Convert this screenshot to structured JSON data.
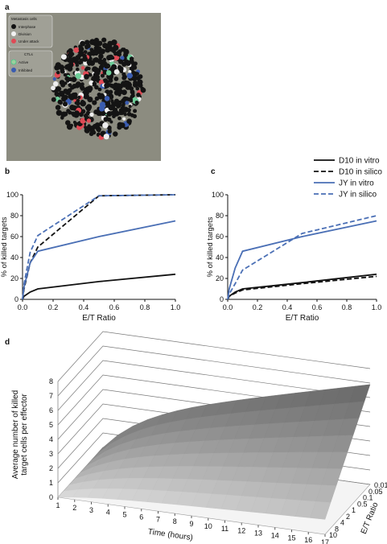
{
  "panel_labels": [
    "a",
    "b",
    "c",
    "d"
  ],
  "simulation_legend": {
    "cells_title": "Metastasis cells",
    "cells": [
      "Interphase",
      "Division",
      "Under attack"
    ],
    "ctl_title": "CTLs",
    "ctls": [
      "Active",
      "Inhibited"
    ]
  },
  "chart_data": [
    {
      "type": "line",
      "x": [
        0,
        0.01,
        0.05,
        0.1,
        0.5,
        1
      ],
      "xlim": [
        0,
        1
      ],
      "ylim": [
        0,
        100
      ],
      "xticks": [
        {
          "value": 0,
          "label": "0.0"
        },
        0.2,
        0.4,
        0.6,
        0.8,
        {
          "value": 1,
          "label": "1.0"
        }
      ],
      "yticks": [
        0,
        20,
        40,
        60,
        80,
        100
      ],
      "xlabel": "E/T Ratio",
      "ylabel": "% of killed targets",
      "series": [
        {
          "name": "D10 in vitro",
          "color": "#111111",
          "dash": false,
          "values": [
            0,
            3,
            7,
            10,
            17,
            24
          ]
        },
        {
          "name": "D10 in silico",
          "color": "#111111",
          "dash": true,
          "values": [
            0,
            10,
            35,
            50,
            99,
            100
          ]
        },
        {
          "name": "JY in vitro",
          "color": "#4a6fb5",
          "dash": false,
          "values": [
            0,
            12,
            35,
            46,
            60,
            75
          ]
        },
        {
          "name": "JY in silico",
          "color": "#4a6fb5",
          "dash": true,
          "values": [
            0,
            15,
            45,
            61,
            99,
            100
          ]
        }
      ]
    },
    {
      "type": "line",
      "x": [
        0,
        0.01,
        0.05,
        0.1,
        0.5,
        1
      ],
      "xlim": [
        0,
        1
      ],
      "ylim": [
        0,
        100
      ],
      "xticks": [
        {
          "value": 0,
          "label": "0.0"
        },
        0.2,
        0.4,
        0.6,
        0.8,
        {
          "value": 1,
          "label": "1.0"
        }
      ],
      "yticks": [
        0,
        20,
        40,
        60,
        80,
        100
      ],
      "xlabel": "E/T Ratio",
      "ylabel": "% of killed targets",
      "series": [
        {
          "color": "#111111",
          "dash": false,
          "values": [
            0,
            3,
            7,
            10,
            16,
            24
          ]
        },
        {
          "color": "#111111",
          "dash": true,
          "values": [
            0,
            3,
            6,
            9,
            15,
            22
          ]
        },
        {
          "color": "#4a6fb5",
          "dash": false,
          "values": [
            0,
            10,
            30,
            46,
            60,
            75
          ]
        },
        {
          "color": "#4a6fb5",
          "dash": true,
          "values": [
            0,
            5,
            15,
            28,
            63,
            80
          ]
        }
      ]
    },
    {
      "type": "surface",
      "zlabel": [
        "Average number of killed",
        "target cells per effector"
      ],
      "xlabel": "Time (hours)",
      "ylabel": "E/T Ratio",
      "xticks": [
        1,
        2,
        3,
        4,
        5,
        6,
        7,
        8,
        9,
        10,
        11,
        12,
        13,
        14,
        15,
        16,
        17
      ],
      "xlim": [
        1,
        17
      ],
      "y_categories": [
        "0.01",
        "0.05",
        "0.1",
        "0.5",
        "1",
        "2",
        "4",
        "8",
        "10"
      ],
      "zlim": [
        0,
        8
      ],
      "zticks": [
        0,
        1,
        2,
        3,
        4,
        5,
        6,
        7,
        8
      ]
    }
  ]
}
